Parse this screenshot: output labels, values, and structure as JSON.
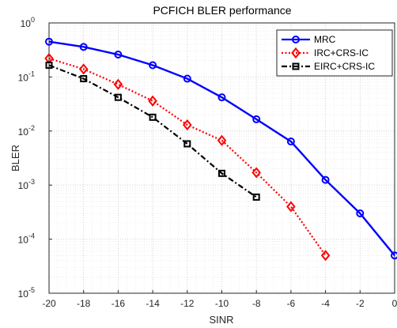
{
  "chart_data": {
    "type": "line",
    "title": "PCFICH BLER performance",
    "xlabel": "SINR",
    "ylabel": "BLER",
    "xlim": [
      -20,
      0
    ],
    "ylim": [
      1e-05,
      1
    ],
    "yscale": "log",
    "grid": true,
    "minor_grid": true,
    "legend_position": "top-right",
    "x_ticks": [
      -20,
      -18,
      -16,
      -14,
      -12,
      -10,
      -8,
      -6,
      -4,
      -2,
      0
    ],
    "x_tick_labels": [
      "-20",
      "-18",
      "-16",
      "-14",
      "-12",
      "-10",
      "-8",
      "-6",
      "-4",
      "-2",
      "0"
    ],
    "y_ticks": [
      {
        "value": 1,
        "base": "10",
        "exp": "0"
      },
      {
        "value": 0.1,
        "base": "10",
        "exp": "-1"
      },
      {
        "value": 0.01,
        "base": "10",
        "exp": "-2"
      },
      {
        "value": 0.001,
        "base": "10",
        "exp": "-3"
      },
      {
        "value": 0.0001,
        "base": "10",
        "exp": "-4"
      },
      {
        "value": 1e-05,
        "base": "10",
        "exp": "-5"
      }
    ],
    "series": [
      {
        "name": "MRC",
        "color": "#0000ff",
        "line_style": "solid",
        "marker": "circle",
        "x": [
          -20,
          -18,
          -16,
          -14,
          -12,
          -10,
          -8,
          -6,
          -4,
          -2,
          0
        ],
        "y": [
          0.45,
          0.36,
          0.26,
          0.165,
          0.093,
          0.042,
          0.0165,
          0.0064,
          0.00125,
          0.0003,
          5e-05
        ]
      },
      {
        "name": "IRC+CRS-IC",
        "color": "#ff0000",
        "line_style": "dotted",
        "marker": "diamond",
        "x": [
          -20,
          -18,
          -16,
          -14,
          -12,
          -10,
          -8,
          -6,
          -4
        ],
        "y": [
          0.22,
          0.14,
          0.073,
          0.036,
          0.013,
          0.0067,
          0.0017,
          0.0004,
          5e-05
        ]
      },
      {
        "name": "EIRC+CRS-IC",
        "color": "#000000",
        "line_style": "dashdot",
        "marker": "square",
        "x": [
          -20,
          -18,
          -16,
          -14,
          -12,
          -10,
          -8
        ],
        "y": [
          0.165,
          0.093,
          0.042,
          0.018,
          0.0058,
          0.00165,
          0.0006
        ]
      }
    ]
  }
}
